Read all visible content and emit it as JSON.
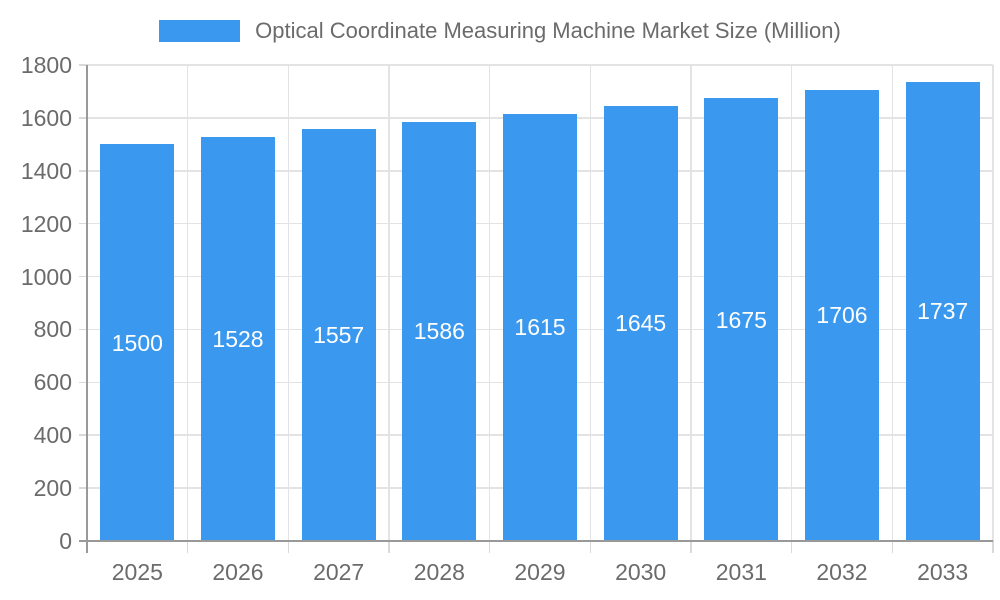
{
  "chart_data": {
    "type": "bar",
    "title": "Optical Coordinate Measuring Machine Market Size (Million)",
    "legend": [
      "Optical Coordinate Measuring Machine Market Size (Million)"
    ],
    "legend_position": "top",
    "categories": [
      "2025",
      "2026",
      "2027",
      "2028",
      "2029",
      "2030",
      "2031",
      "2032",
      "2033"
    ],
    "values": [
      1500,
      1528,
      1557,
      1586,
      1615,
      1645,
      1675,
      1706,
      1737
    ],
    "value_labels_position": "inside-center",
    "xlabel": "",
    "ylabel": "",
    "ylim": [
      0,
      1800
    ],
    "yticks": [
      0,
      200,
      400,
      600,
      800,
      1000,
      1200,
      1400,
      1600,
      1800
    ],
    "grid": true,
    "colors": {
      "bar": "#3A99EF",
      "value_label": "#FFFFFF",
      "axis_text": "#6B6B6B",
      "grid_line": "#E3E3E3",
      "tick_line": "#D9D9D9",
      "axis_line": "#999999",
      "background": "#FFFFFF"
    }
  }
}
